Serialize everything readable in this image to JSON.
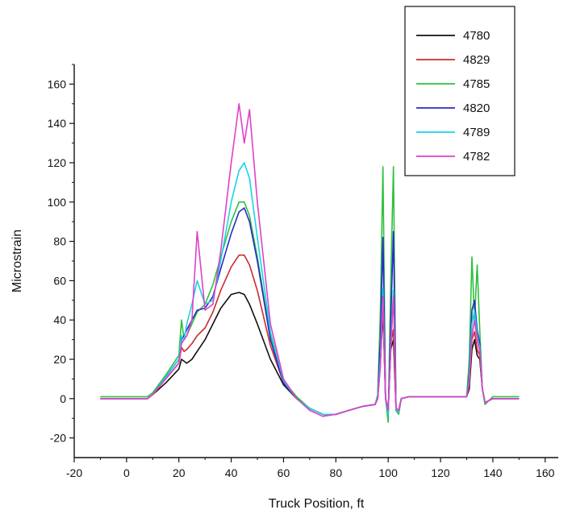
{
  "chart_data": {
    "type": "line",
    "xlabel": "Truck Position, ft",
    "ylabel": "Microstrain",
    "xlim": [
      -20,
      165
    ],
    "ylim": [
      -30,
      170
    ],
    "xticks": [
      -20,
      0,
      20,
      40,
      60,
      80,
      100,
      120,
      140,
      160
    ],
    "yticks": [
      -20,
      0,
      20,
      40,
      60,
      80,
      100,
      120,
      140,
      160
    ],
    "legend_position": "top-right",
    "series": [
      {
        "name": "4780",
        "color": "#111111",
        "x": [
          -10,
          8,
          10,
          15,
          20,
          21,
          22,
          23,
          25,
          27,
          30,
          33,
          36,
          40,
          43,
          45,
          47,
          50,
          55,
          60,
          65,
          70,
          75,
          80,
          85,
          90,
          95,
          96,
          97,
          98,
          99,
          100,
          101,
          102,
          103,
          104,
          105,
          108,
          115,
          125,
          130,
          131,
          132,
          133,
          134,
          135,
          136,
          137,
          140,
          150
        ],
        "y": [
          0,
          0,
          2,
          8,
          15,
          20,
          19,
          18,
          20,
          24,
          30,
          38,
          46,
          53,
          54,
          53,
          48,
          38,
          20,
          7,
          0,
          -5,
          -8,
          -8,
          -6,
          -4,
          -3,
          0,
          18,
          45,
          0,
          -6,
          25,
          30,
          -5,
          -6,
          0,
          1,
          1,
          1,
          1,
          5,
          25,
          30,
          22,
          20,
          5,
          -2,
          0,
          0
        ]
      },
      {
        "name": "4829",
        "color": "#cc2b2b",
        "x": [
          -10,
          8,
          10,
          15,
          20,
          21,
          22,
          23,
          25,
          27,
          30,
          33,
          36,
          40,
          43,
          45,
          47,
          50,
          55,
          60,
          65,
          70,
          75,
          80,
          85,
          90,
          95,
          96,
          97,
          98,
          99,
          100,
          101,
          102,
          103,
          104,
          105,
          108,
          115,
          125,
          130,
          131,
          132,
          133,
          134,
          135,
          136,
          137,
          140,
          150
        ],
        "y": [
          0,
          0,
          2,
          10,
          18,
          26,
          24,
          25,
          28,
          32,
          36,
          44,
          55,
          67,
          73,
          73,
          68,
          55,
          27,
          8,
          0,
          -5,
          -8,
          -8,
          -6,
          -4,
          -3,
          0,
          20,
          50,
          0,
          -6,
          28,
          35,
          -5,
          -6,
          0,
          1,
          1,
          1,
          1,
          8,
          30,
          34,
          25,
          22,
          5,
          -2,
          0,
          0
        ]
      },
      {
        "name": "4785",
        "color": "#2ec040",
        "x": [
          -10,
          8,
          10,
          15,
          20,
          21,
          22,
          23,
          25,
          27,
          30,
          33,
          36,
          40,
          43,
          45,
          47,
          50,
          55,
          60,
          65,
          70,
          75,
          80,
          85,
          90,
          95,
          96,
          97,
          98,
          99,
          100,
          101,
          102,
          103,
          104,
          105,
          108,
          115,
          125,
          130,
          131,
          132,
          133,
          134,
          135,
          136,
          137,
          140,
          150
        ],
        "y": [
          1,
          1,
          3,
          12,
          22,
          40,
          30,
          32,
          38,
          44,
          48,
          58,
          72,
          90,
          100,
          100,
          93,
          72,
          32,
          9,
          1,
          -5,
          -8,
          -8,
          -6,
          -4,
          -3,
          2,
          44,
          118,
          0,
          -12,
          60,
          118,
          -6,
          -8,
          0,
          1,
          1,
          1,
          1,
          20,
          72,
          40,
          68,
          35,
          5,
          -3,
          1,
          1
        ]
      },
      {
        "name": "4820",
        "color": "#2a2ac8",
        "x": [
          -10,
          8,
          10,
          15,
          20,
          21,
          22,
          23,
          25,
          27,
          30,
          33,
          36,
          40,
          43,
          45,
          47,
          50,
          55,
          60,
          65,
          70,
          75,
          80,
          85,
          90,
          95,
          96,
          97,
          98,
          99,
          100,
          101,
          102,
          103,
          104,
          105,
          108,
          115,
          125,
          130,
          131,
          132,
          133,
          134,
          135,
          136,
          137,
          140,
          150
        ],
        "y": [
          0,
          0,
          2,
          11,
          20,
          30,
          32,
          35,
          40,
          45,
          46,
          52,
          66,
          84,
          95,
          97,
          90,
          70,
          30,
          8,
          0,
          -5,
          -8,
          -8,
          -6,
          -4,
          -3,
          1,
          30,
          82,
          0,
          -8,
          40,
          85,
          -5,
          -7,
          0,
          1,
          1,
          1,
          1,
          12,
          45,
          50,
          35,
          28,
          5,
          -2,
          0,
          0
        ]
      },
      {
        "name": "4789",
        "color": "#19d3e8",
        "x": [
          -10,
          8,
          10,
          15,
          20,
          21,
          22,
          23,
          25,
          27,
          30,
          33,
          36,
          40,
          43,
          45,
          47,
          50,
          55,
          60,
          65,
          70,
          75,
          80,
          85,
          90,
          95,
          96,
          97,
          98,
          99,
          100,
          101,
          102,
          103,
          104,
          105,
          108,
          115,
          125,
          130,
          131,
          132,
          133,
          134,
          135,
          136,
          137,
          140,
          150
        ],
        "y": [
          0,
          0,
          2,
          11,
          20,
          32,
          30,
          38,
          48,
          60,
          48,
          50,
          70,
          100,
          116,
          120,
          112,
          82,
          34,
          9,
          0,
          -5,
          -8,
          -8,
          -6,
          -4,
          -3,
          1,
          20,
          56,
          0,
          -8,
          28,
          55,
          -5,
          -7,
          0,
          1,
          1,
          1,
          1,
          10,
          38,
          45,
          32,
          26,
          5,
          -2,
          0,
          0
        ]
      },
      {
        "name": "4782",
        "color": "#e040c8",
        "x": [
          -10,
          8,
          10,
          15,
          20,
          21,
          22,
          23,
          25,
          27,
          30,
          33,
          36,
          40,
          43,
          45,
          47,
          50,
          55,
          60,
          65,
          70,
          75,
          80,
          85,
          90,
          95,
          96,
          97,
          98,
          99,
          100,
          101,
          102,
          103,
          104,
          105,
          108,
          115,
          125,
          130,
          131,
          132,
          133,
          134,
          135,
          136,
          137,
          140,
          150
        ],
        "y": [
          0,
          0,
          2,
          10,
          18,
          28,
          30,
          32,
          40,
          85,
          45,
          48,
          75,
          120,
          150,
          130,
          147,
          100,
          38,
          10,
          0,
          -6,
          -9,
          -8,
          -6,
          -4,
          -3,
          0,
          16,
          52,
          0,
          -6,
          25,
          52,
          -5,
          -6,
          0,
          1,
          1,
          1,
          1,
          8,
          32,
          40,
          30,
          24,
          5,
          -2,
          0,
          0
        ]
      }
    ]
  }
}
